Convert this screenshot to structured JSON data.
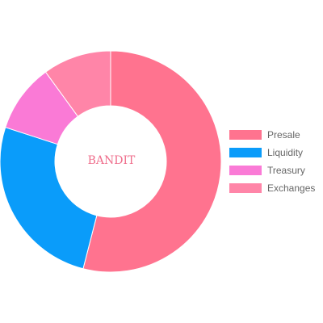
{
  "chart_data": {
    "type": "pie",
    "variant": "doughnut",
    "center_text": "BANDIT",
    "center_text_color": "#ef6f8d",
    "legend_position": "right",
    "categories": [
      "Presale",
      "Liquidity",
      "Treasury",
      "Exchanges"
    ],
    "values": [
      54,
      26,
      10,
      10
    ],
    "colors": [
      "#ff738f",
      "#0a9cfa",
      "#fa7ad6",
      "#ff85a8"
    ]
  }
}
